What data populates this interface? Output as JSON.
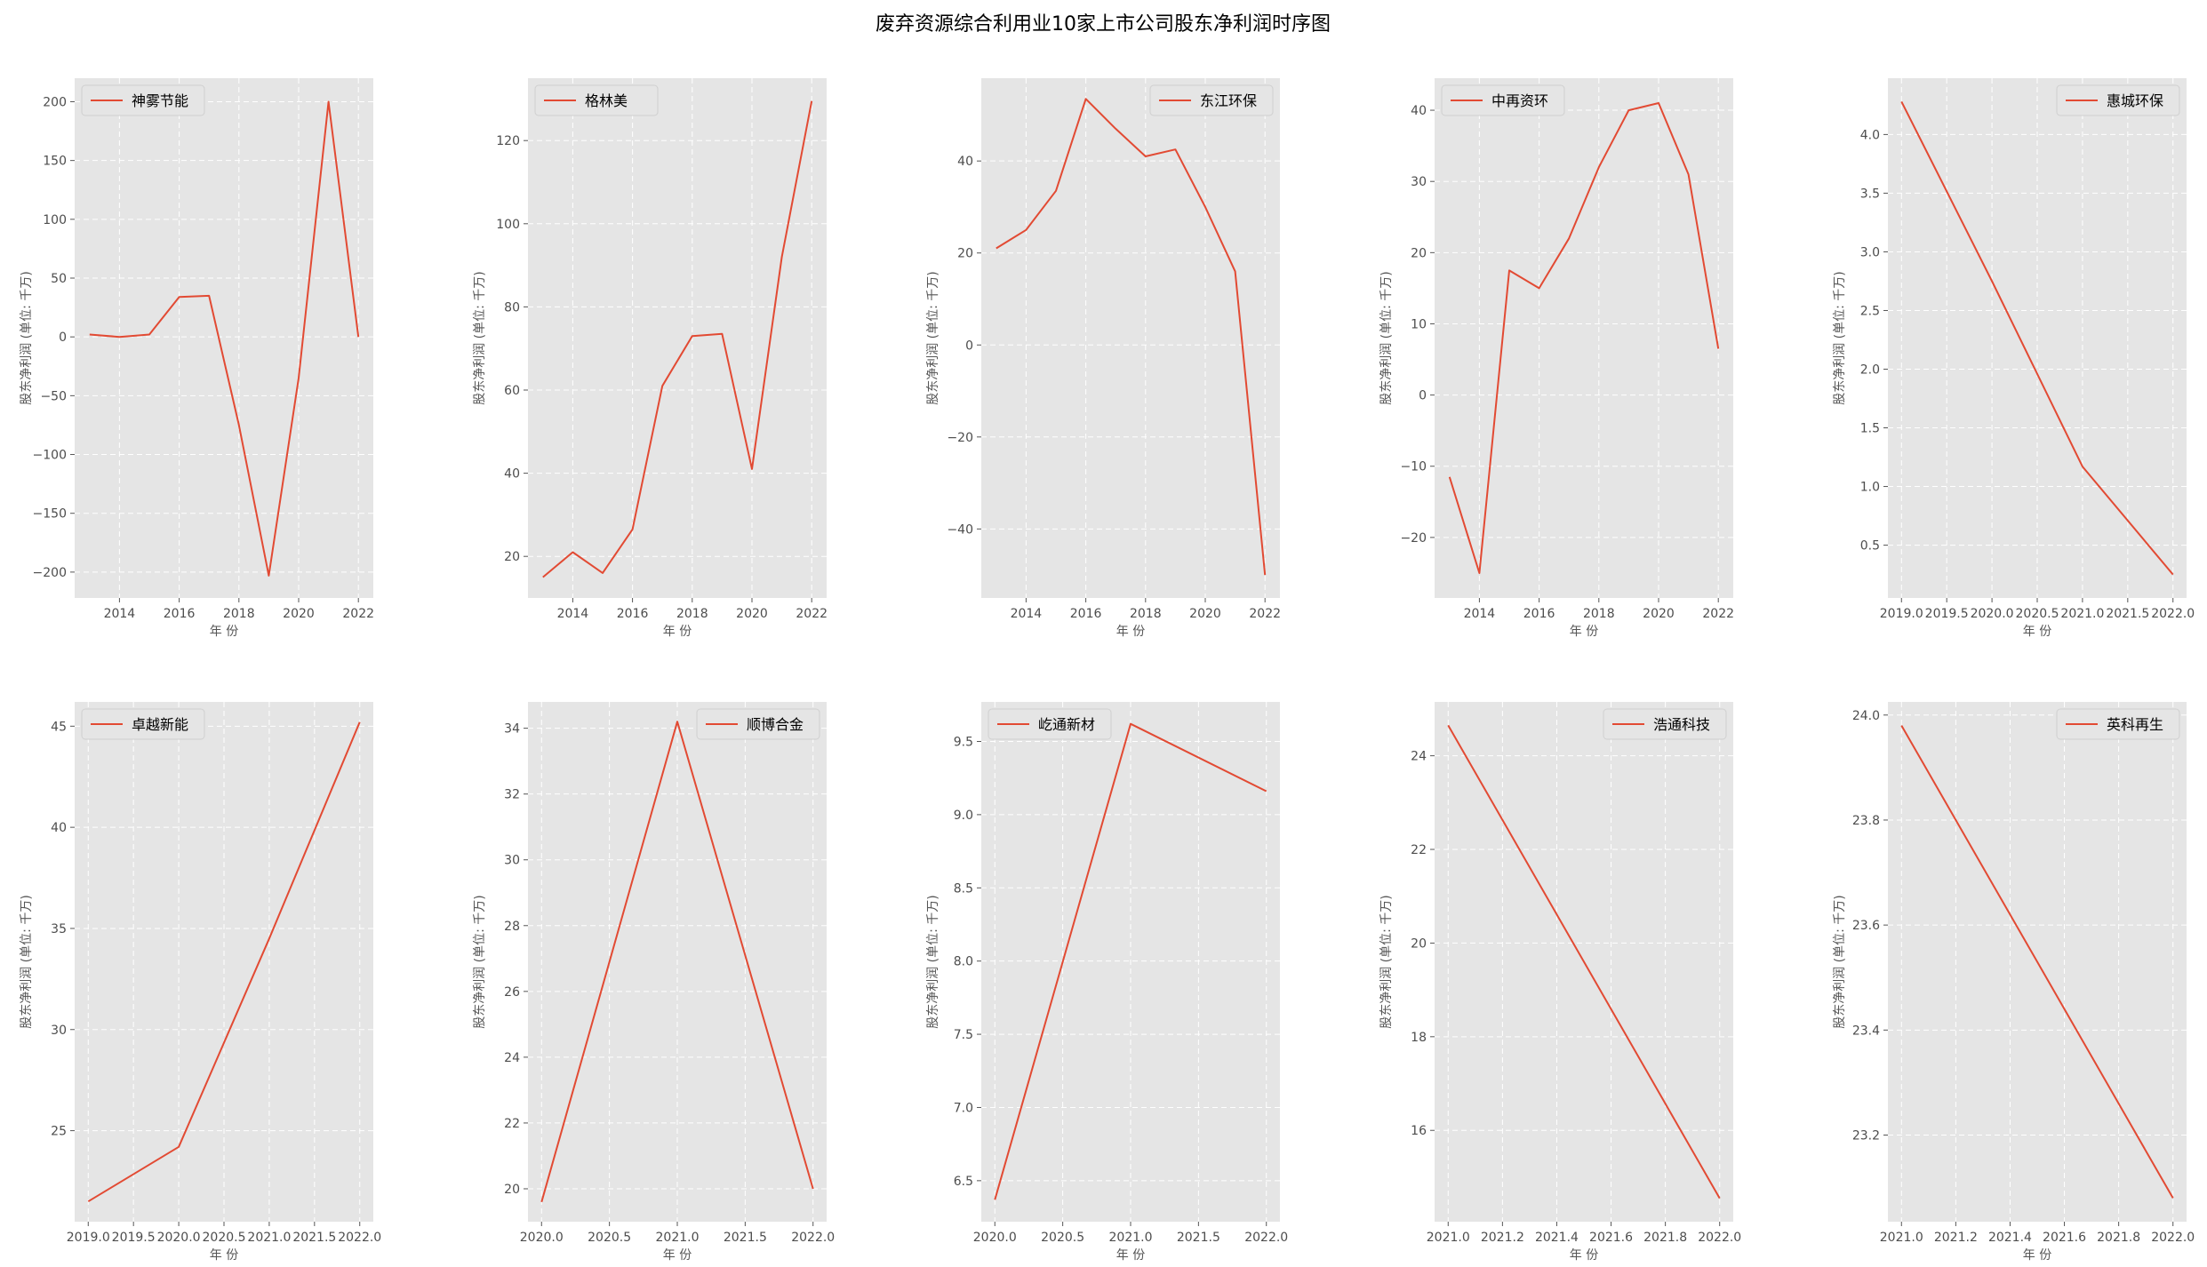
{
  "figure": {
    "title": "废弃资源综合利用业10家上市公司股东净利润时序图",
    "xlabel": "年 份",
    "ylabel": "股东净利润 (单位: 千万)"
  },
  "colors": {
    "line": "#E24A33",
    "plot_bg": "#E5E5E5",
    "grid": "#FFFFFF",
    "tick_text": "#4D4D4D"
  },
  "chart_data": [
    {
      "type": "line",
      "legend": "神雾节能",
      "legend_pos": "top-left",
      "x": [
        2013,
        2014,
        2015,
        2016,
        2017,
        2018,
        2019,
        2020,
        2021,
        2022
      ],
      "values": [
        2,
        0,
        2,
        34,
        35,
        -75,
        -203,
        -35,
        200,
        0
      ],
      "xlim": [
        2012.5,
        2022.5
      ],
      "ylim": [
        -222,
        220
      ],
      "xticks": [
        2014,
        2016,
        2018,
        2020,
        2022
      ],
      "xtick_labels": [
        "2014",
        "2016",
        "2018",
        "2020",
        "2022"
      ],
      "yticks": [
        -200,
        -150,
        -100,
        -50,
        0,
        50,
        100,
        150,
        200
      ],
      "ytick_labels": [
        "−200",
        "−150",
        "−100",
        "−50",
        "0",
        "50",
        "100",
        "150",
        "200"
      ]
    },
    {
      "type": "line",
      "legend": "格林美",
      "legend_pos": "top-left",
      "x": [
        2013,
        2014,
        2015,
        2016,
        2017,
        2018,
        2019,
        2020,
        2021,
        2022
      ],
      "values": [
        15,
        21,
        16,
        26.5,
        61,
        73,
        73.5,
        41,
        92,
        129.5
      ],
      "xlim": [
        2012.5,
        2022.5
      ],
      "ylim": [
        10,
        135
      ],
      "xticks": [
        2014,
        2016,
        2018,
        2020,
        2022
      ],
      "xtick_labels": [
        "2014",
        "2016",
        "2018",
        "2020",
        "2022"
      ],
      "yticks": [
        20,
        40,
        60,
        80,
        100,
        120
      ],
      "ytick_labels": [
        "20",
        "40",
        "60",
        "80",
        "100",
        "120"
      ]
    },
    {
      "type": "line",
      "legend": "东江环保",
      "legend_pos": "top-right",
      "x": [
        2013,
        2014,
        2015,
        2016,
        2017,
        2018,
        2019,
        2020,
        2021,
        2022
      ],
      "values": [
        21,
        25,
        33.5,
        53.5,
        47,
        41,
        42.5,
        30,
        16,
        -50
      ],
      "xlim": [
        2012.5,
        2022.5
      ],
      "ylim": [
        -55,
        58
      ],
      "xticks": [
        2014,
        2016,
        2018,
        2020,
        2022
      ],
      "xtick_labels": [
        "2014",
        "2016",
        "2018",
        "2020",
        "2022"
      ],
      "yticks": [
        -40,
        -20,
        0,
        20,
        40
      ],
      "ytick_labels": [
        "−40",
        "−20",
        "0",
        "20",
        "40"
      ]
    },
    {
      "type": "line",
      "legend": "中再资环",
      "legend_pos": "top-left",
      "x": [
        2013,
        2014,
        2015,
        2016,
        2017,
        2018,
        2019,
        2020,
        2021,
        2022
      ],
      "values": [
        -11.5,
        -25,
        17.5,
        15,
        22,
        32,
        40,
        41,
        31,
        6.5
      ],
      "xlim": [
        2012.5,
        2022.5
      ],
      "ylim": [
        -28.5,
        44.5
      ],
      "xticks": [
        2014,
        2016,
        2018,
        2020,
        2022
      ],
      "xtick_labels": [
        "2014",
        "2016",
        "2018",
        "2020",
        "2022"
      ],
      "yticks": [
        -20,
        -10,
        0,
        10,
        20,
        30,
        40
      ],
      "ytick_labels": [
        "−20",
        "−10",
        "0",
        "10",
        "20",
        "30",
        "40"
      ]
    },
    {
      "type": "line",
      "legend": "惠城环保",
      "legend_pos": "top-right",
      "x": [
        2019,
        2020,
        2021,
        2022
      ],
      "values": [
        4.28,
        2.75,
        1.17,
        0.25
      ],
      "xlim": [
        2018.85,
        2022.15
      ],
      "ylim": [
        0.05,
        4.48
      ],
      "xticks": [
        2019.0,
        2019.5,
        2020.0,
        2020.5,
        2021.0,
        2021.5,
        2022.0
      ],
      "xtick_labels": [
        "2019.0",
        "2019.5",
        "2020.0",
        "2020.5",
        "2021.0",
        "2021.5",
        "2022.0"
      ],
      "yticks": [
        0.5,
        1.0,
        1.5,
        2.0,
        2.5,
        3.0,
        3.5,
        4.0
      ],
      "ytick_labels": [
        "0.5",
        "1.0",
        "1.5",
        "2.0",
        "2.5",
        "3.0",
        "3.5",
        "4.0"
      ]
    },
    {
      "type": "line",
      "legend": "卓越新能",
      "legend_pos": "top-left",
      "x": [
        2019,
        2020,
        2021,
        2022
      ],
      "values": [
        21.5,
        24.2,
        34.5,
        45.2
      ],
      "xlim": [
        2018.85,
        2022.15
      ],
      "ylim": [
        20.5,
        46.2
      ],
      "xticks": [
        2019.0,
        2019.5,
        2020.0,
        2020.5,
        2021.0,
        2021.5,
        2022.0
      ],
      "xtick_labels": [
        "2019.0",
        "2019.5",
        "2020.0",
        "2020.5",
        "2021.0",
        "2021.5",
        "2022.0"
      ],
      "yticks": [
        25,
        30,
        35,
        40,
        45
      ],
      "ytick_labels": [
        "25",
        "30",
        "35",
        "40",
        "45"
      ]
    },
    {
      "type": "line",
      "legend": "顺博合金",
      "legend_pos": "top-right",
      "x": [
        2020,
        2021,
        2022
      ],
      "values": [
        19.6,
        34.2,
        20.0
      ],
      "xlim": [
        2019.9,
        2022.1
      ],
      "ylim": [
        19.0,
        34.8
      ],
      "xticks": [
        2020.0,
        2020.5,
        2021.0,
        2021.5,
        2022.0
      ],
      "xtick_labels": [
        "2020.0",
        "2020.5",
        "2021.0",
        "2021.5",
        "2022.0"
      ],
      "yticks": [
        20,
        22,
        24,
        26,
        28,
        30,
        32,
        34
      ],
      "ytick_labels": [
        "20",
        "22",
        "24",
        "26",
        "28",
        "30",
        "32",
        "34"
      ]
    },
    {
      "type": "line",
      "legend": "屹通新材",
      "legend_pos": "top-left",
      "x": [
        2020,
        2021,
        2022
      ],
      "values": [
        6.37,
        9.62,
        9.16
      ],
      "xlim": [
        2019.9,
        2022.1
      ],
      "ylim": [
        6.22,
        9.77
      ],
      "xticks": [
        2020.0,
        2020.5,
        2021.0,
        2021.5,
        2022.0
      ],
      "xtick_labels": [
        "2020.0",
        "2020.5",
        "2021.0",
        "2021.5",
        "2022.0"
      ],
      "yticks": [
        6.5,
        7.0,
        7.5,
        8.0,
        8.5,
        9.0,
        9.5
      ],
      "ytick_labels": [
        "6.5",
        "7.0",
        "7.5",
        "8.0",
        "8.5",
        "9.0",
        "9.5"
      ]
    },
    {
      "type": "line",
      "legend": "浩通科技",
      "legend_pos": "top-right",
      "x": [
        2021,
        2022
      ],
      "values": [
        24.65,
        14.55
      ],
      "xlim": [
        2020.95,
        2022.05
      ],
      "ylim": [
        14.05,
        25.15
      ],
      "xticks": [
        2021.0,
        2021.2,
        2021.4,
        2021.6,
        2021.8,
        2022.0
      ],
      "xtick_labels": [
        "2021.0",
        "2021.2",
        "2021.4",
        "2021.6",
        "2021.8",
        "2022.0"
      ],
      "yticks": [
        16,
        18,
        20,
        22,
        24
      ],
      "ytick_labels": [
        "16",
        "18",
        "20",
        "22",
        "24"
      ]
    },
    {
      "type": "line",
      "legend": "英科再生",
      "legend_pos": "top-right",
      "x": [
        2021,
        2022
      ],
      "values": [
        23.98,
        23.08
      ],
      "xlim": [
        2020.95,
        2022.05
      ],
      "ylim": [
        23.035,
        24.025
      ],
      "xticks": [
        2021.0,
        2021.2,
        2021.4,
        2021.6,
        2021.8,
        2022.0
      ],
      "xtick_labels": [
        "2021.0",
        "2021.2",
        "2021.4",
        "2021.6",
        "2021.8",
        "2022.0"
      ],
      "yticks": [
        23.2,
        23.4,
        23.6,
        23.8,
        24.0
      ],
      "ytick_labels": [
        "23.2",
        "23.4",
        "23.6",
        "23.8",
        "24.0"
      ]
    }
  ]
}
